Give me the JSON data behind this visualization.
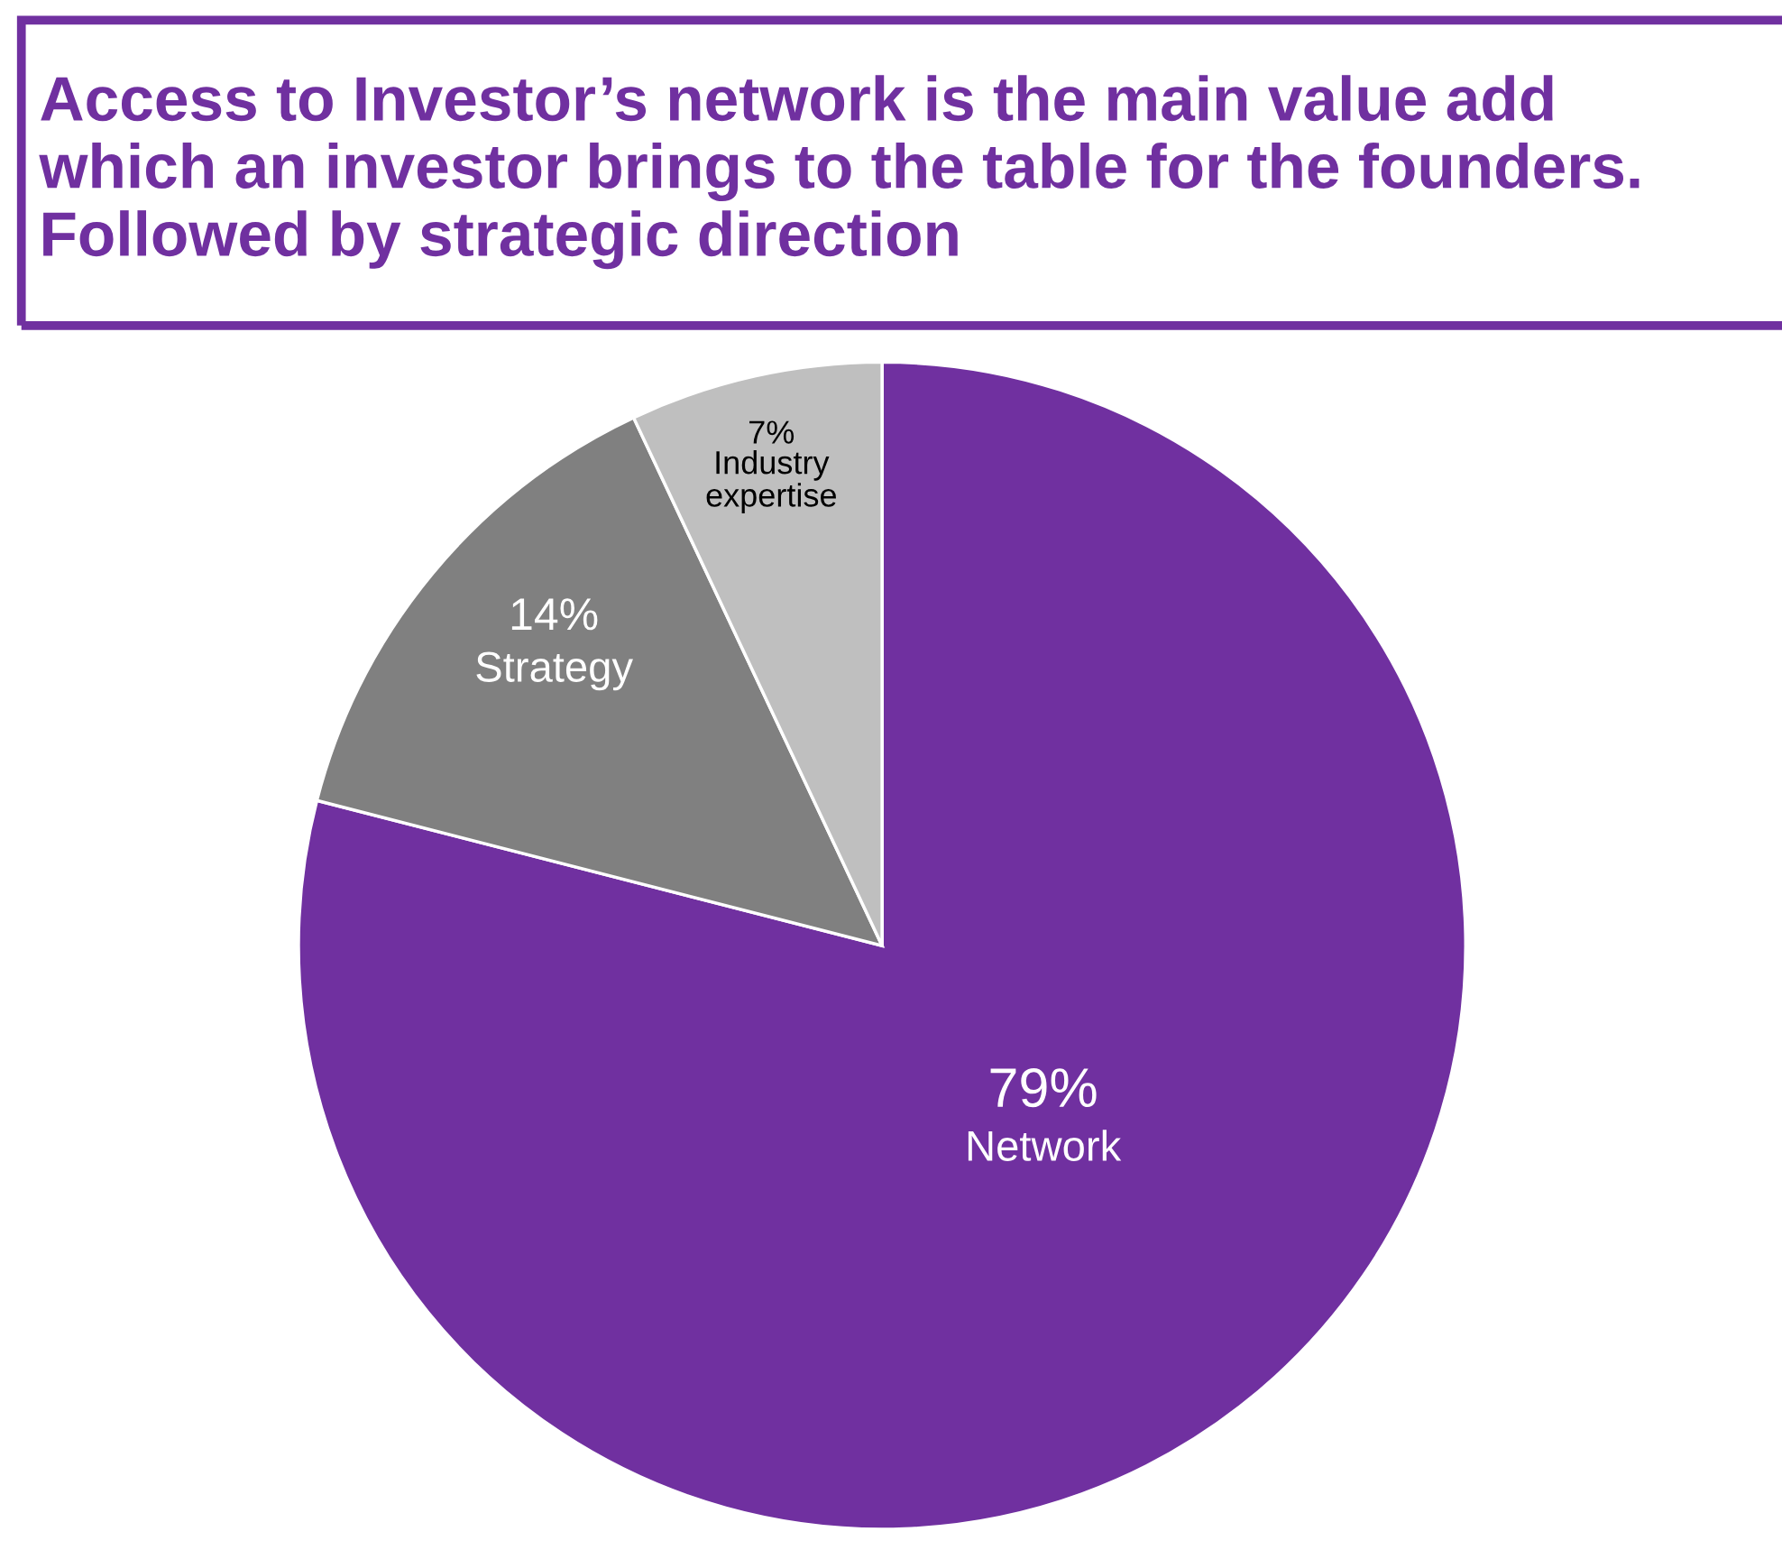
{
  "chart_data": {
    "type": "pie",
    "title": "Access to Investor’s network is the main value add\nwhich an investor brings to the table for the founders.\nFollowed by strategic direction",
    "categories": [
      "Network",
      "Strategy",
      "Industry\nexpertise"
    ],
    "values": [
      79,
      14,
      7
    ],
    "colors": [
      "#7030a0",
      "#808080",
      "#bfbfbf"
    ],
    "value_labels": [
      "79%",
      "14%",
      "7%"
    ],
    "legend": false
  }
}
